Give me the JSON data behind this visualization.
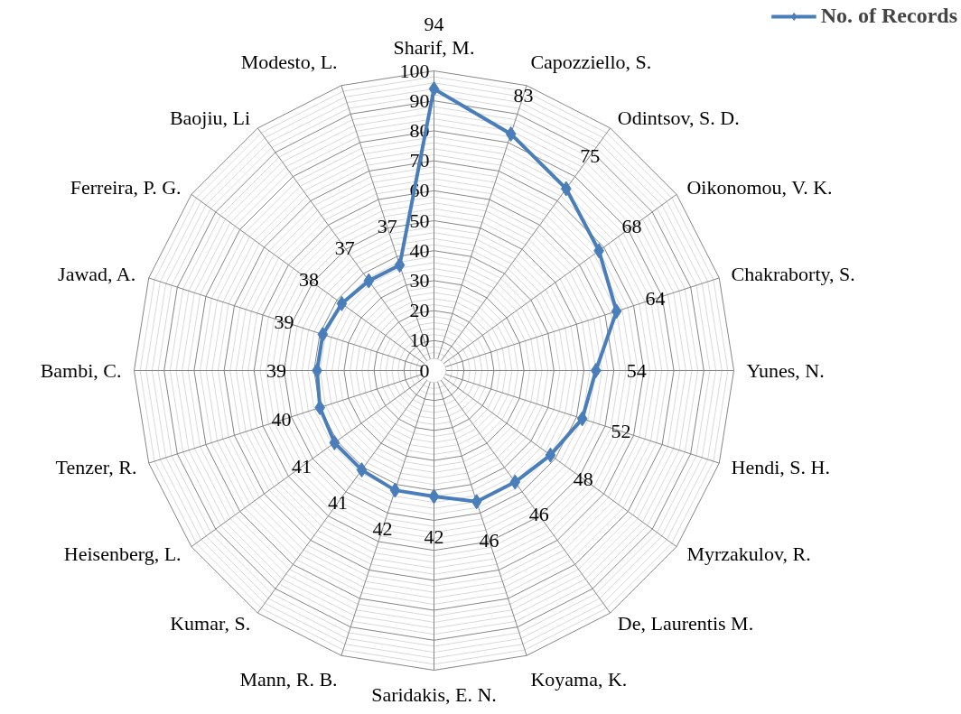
{
  "chart_data": {
    "type": "radar",
    "categories": [
      "Sharif, M.",
      "Capozziello, S.",
      "Odintsov, S. D.",
      "Oikonomou, V. K.",
      "Chakraborty, S.",
      "Yunes, N.",
      "Hendi, S. H.",
      "Myrzakulov, R.",
      "De, Laurentis M.",
      "Koyama, K.",
      "Saridakis, E. N.",
      "Mann, R. B.",
      "Kumar, S.",
      "Heisenberg, L.",
      "Tenzer, R.",
      "Bambi, C.",
      "Jawad, A.",
      "Ferreira, P. G.",
      "Baojiu, Li",
      "Modesto, L."
    ],
    "series": [
      {
        "name": "No. of Records",
        "color": "#4a7ebb",
        "values": [
          94,
          83,
          75,
          68,
          64,
          54,
          52,
          48,
          46,
          46,
          42,
          42,
          41,
          41,
          40,
          39,
          39,
          38,
          37,
          37
        ]
      }
    ],
    "ylim": [
      0,
      100
    ],
    "yticks": [
      0,
      10,
      20,
      30,
      40,
      50,
      60,
      70,
      80,
      90,
      100
    ],
    "grid": true,
    "legend": "top right",
    "marker": "diamond",
    "line_style": "solid",
    "data_labels": true
  }
}
